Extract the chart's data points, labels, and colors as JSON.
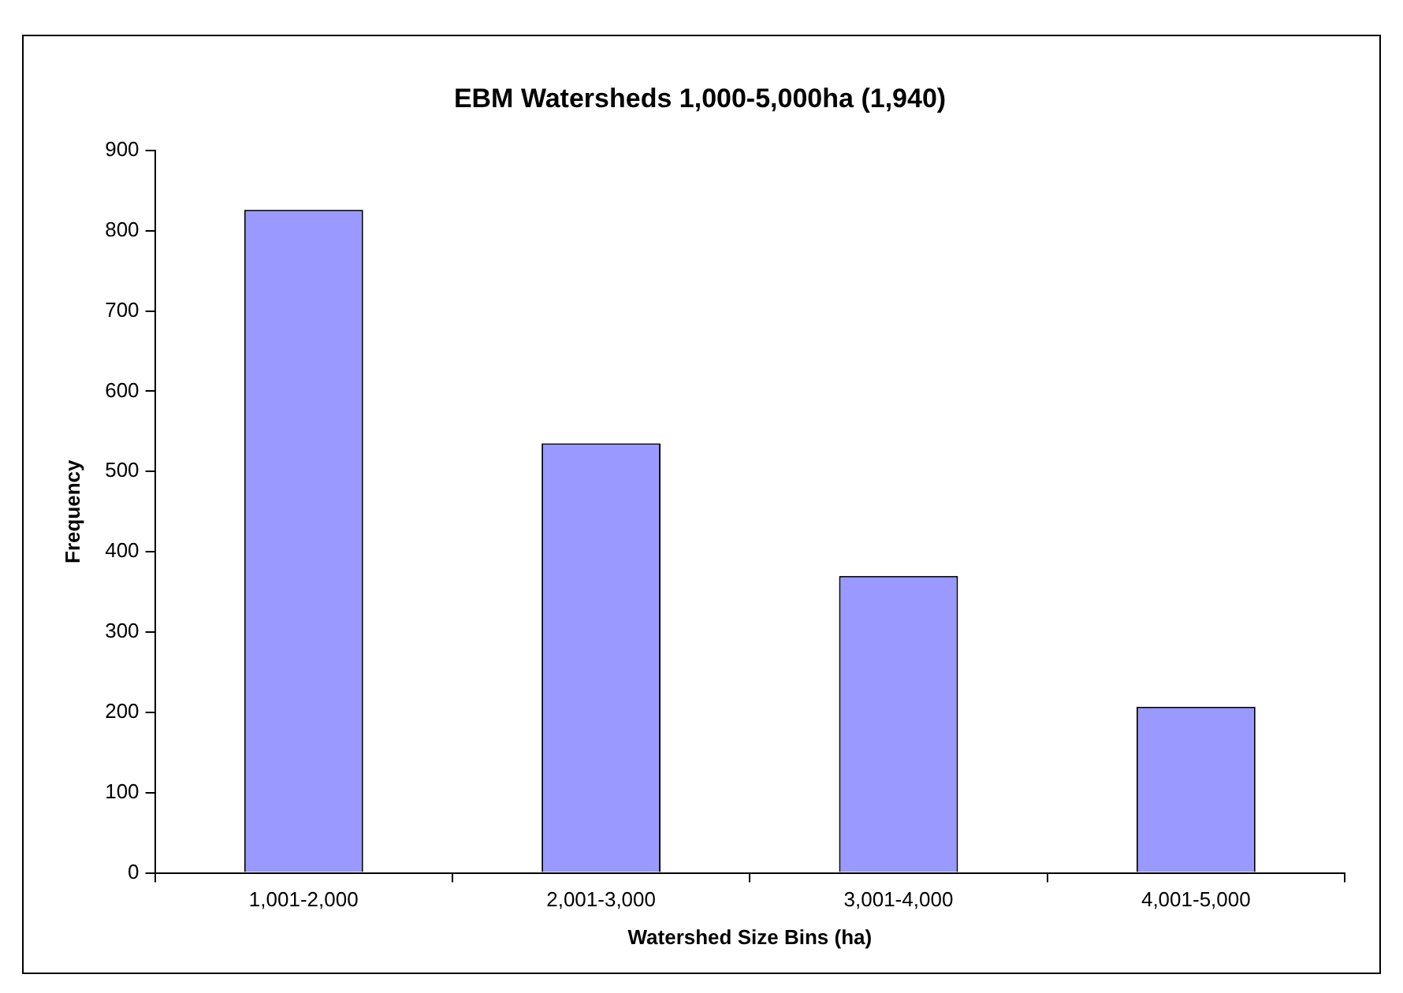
{
  "chart_data": {
    "type": "bar",
    "title": "EBM Watersheds 1,000-5,000ha (1,940)",
    "xlabel": "Watershed Size Bins (ha)",
    "ylabel": "Frequency",
    "categories": [
      "1,001-2,000",
      "2,001-3,000",
      "3,001-4,000",
      "4,001-5,000"
    ],
    "values": [
      826,
      535,
      370,
      207
    ],
    "color": "#9999ff",
    "ylim": [
      0,
      900
    ],
    "yticks": [
      0,
      100,
      200,
      300,
      400,
      500,
      600,
      700,
      800,
      900
    ],
    "grid": false,
    "legend": false
  }
}
